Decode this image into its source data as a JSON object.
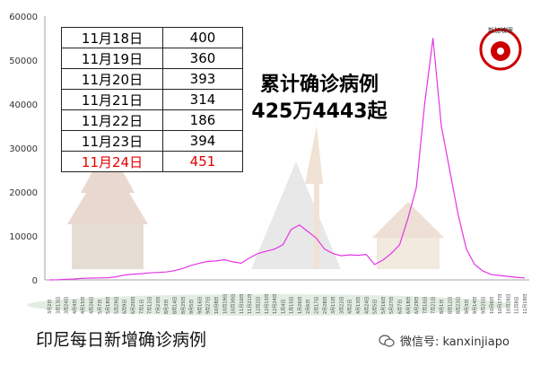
{
  "chart_data": {
    "type": "line",
    "title": "印尼每日新增确诊病例",
    "ylim": [
      0,
      60000
    ],
    "yticks": [
      0,
      10000,
      20000,
      30000,
      40000,
      50000,
      60000
    ],
    "x_labels": [
      "3月2日",
      "3月13日",
      "3月24日",
      "4月4日",
      "4月15日",
      "4月26日",
      "5月7日",
      "5月18日",
      "5月29日",
      "6月9日",
      "6月20日",
      "7月1日",
      "7月12日",
      "7月23日",
      "8月3日",
      "8月14日",
      "8月25日",
      "9月5日",
      "9月16日",
      "9月27日",
      "10月8日",
      "10月19日",
      "10月30日",
      "11月10日",
      "11月21日",
      "12月2日",
      "12月13日",
      "12月24日",
      "1月4日",
      "1月15日",
      "1月26日",
      "2月6日",
      "2月17日",
      "2月28日",
      "3月11日",
      "3月22日",
      "4月2日",
      "4月13日",
      "4月24日",
      "5月5日",
      "5月16日",
      "5月27日",
      "6月7日",
      "6月18日",
      "6月29日",
      "7月10日",
      "7月21日",
      "8月1日",
      "8月12日",
      "8月23日",
      "9月3日",
      "9月14日",
      "9月25日",
      "10月6日",
      "10月17日",
      "10月28日",
      "11月8日",
      "11月19日"
    ],
    "series": [
      {
        "color": "#e535e5",
        "x": [
          "3月2日",
          "3月13日",
          "3月24日",
          "4月4日",
          "4月15日",
          "4月26日",
          "5月7日",
          "5月18日",
          "5月29日",
          "6月9日",
          "6月20日",
          "7月1日",
          "7月12日",
          "7月23日",
          "8月3日",
          "8月14日",
          "8月25日",
          "9月5日",
          "9月16日",
          "9月27日",
          "10月8日",
          "10月19日",
          "10月30日",
          "11月10日",
          "11月21日",
          "12月2日",
          "12月13日",
          "12月24日",
          "1月4日",
          "1月15日",
          "1月26日",
          "2月6日",
          "2月17日",
          "2月28日",
          "3月11日",
          "3月22日",
          "4月2日",
          "4月13日",
          "4月24日",
          "5月5日",
          "5月16日",
          "5月27日",
          "6月7日",
          "6月18日",
          "6月29日",
          "7月10日",
          "7月21日",
          "8月1日",
          "8月12日",
          "8月23日",
          "9月3日",
          "9月14日",
          "9月25日",
          "10月6日",
          "10月17日",
          "10月28日",
          "11月8日",
          "11月19日"
        ],
        "values": [
          0,
          50,
          150,
          200,
          350,
          400,
          450,
          500,
          700,
          1100,
          1300,
          1400,
          1600,
          1700,
          1800,
          2100,
          2600,
          3300,
          3800,
          4200,
          4300,
          4600,
          4100,
          3800,
          5000,
          6000,
          6500,
          7000,
          8000,
          11500,
          12500,
          11000,
          9500,
          7000,
          6000,
          5500,
          5700,
          5600,
          5800,
          3500,
          4500,
          6000,
          8000,
          14000,
          21000,
          40000,
          55000,
          35000,
          25000,
          15000,
          7000,
          3500,
          2000,
          1200,
          1000,
          800,
          600,
          451
        ]
      }
    ],
    "table": [
      {
        "date": "11月18日",
        "value": "400"
      },
      {
        "date": "11月19日",
        "value": "360"
      },
      {
        "date": "11月20日",
        "value": "393"
      },
      {
        "date": "11月21日",
        "value": "314"
      },
      {
        "date": "11月22日",
        "value": "186"
      },
      {
        "date": "11月23日",
        "value": "394"
      },
      {
        "date": "11月24日",
        "value": "451",
        "highlight": true
      }
    ],
    "total_lines": [
      "累计确诊病例",
      "425万4443起"
    ],
    "accent_color": "#e535e5",
    "highlight_color": "#e60000",
    "grid": false
  },
  "caption": "印尼每日新增确诊病例",
  "watermark": "微信号: kanxinjiapo",
  "logo_text": "新加坡眼"
}
